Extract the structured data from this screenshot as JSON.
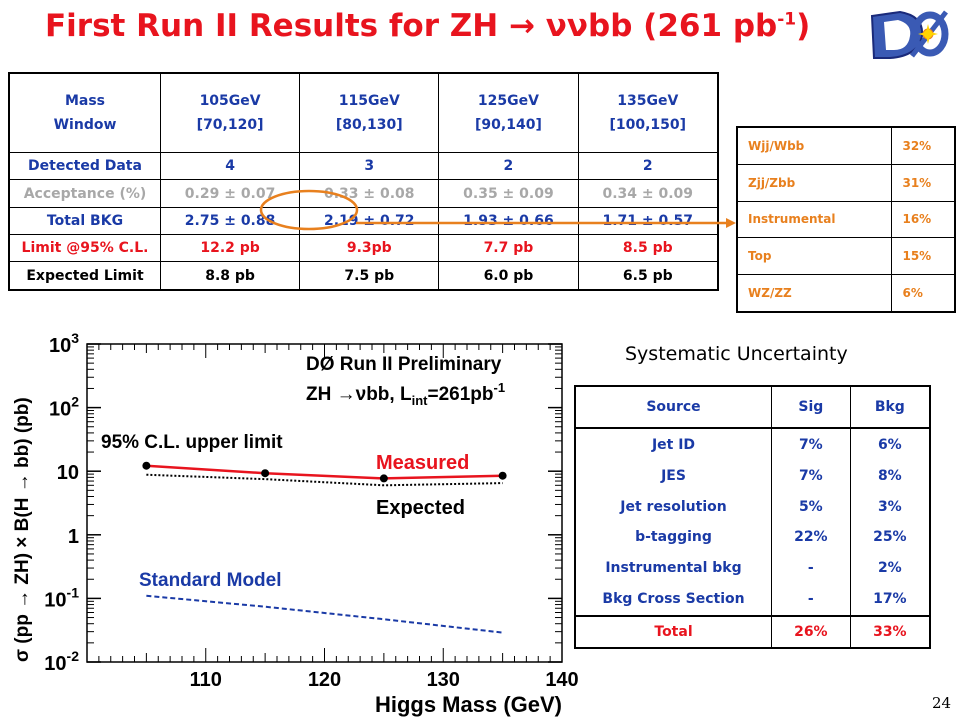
{
  "slide": {
    "title_main": "First Run II Results for ZH → ννbb (261 pb",
    "title_sup": "-1",
    "title_close": ")",
    "page_number": "24"
  },
  "colors": {
    "red": "#e8141e",
    "blue": "#1a3aa6",
    "orange": "#e8801e",
    "gray": "#a8a8a8"
  },
  "results_table": {
    "header": [
      "Mass Window",
      "105GeV [70,120]",
      "115GeV [80,130]",
      "125GeV [90,140]",
      "135GeV [100,150]"
    ],
    "header_lines": [
      [
        "Mass",
        "Window"
      ],
      [
        "105GeV",
        "[70,120]"
      ],
      [
        "115GeV",
        "[80,130]"
      ],
      [
        "125GeV",
        "[90,140]"
      ],
      [
        "135GeV",
        "[100,150]"
      ]
    ],
    "rows": [
      [
        "Detected Data",
        "4",
        "3",
        "2",
        "2"
      ],
      [
        "Acceptance (%)",
        "0.29 ± 0.07",
        "0.33 ± 0.08",
        "0.35 ± 0.09",
        "0.34 ± 0.09"
      ],
      [
        "Total BKG",
        "2.75 ± 0.88",
        "2.19 ± 0.72",
        "1.93 ± 0.66",
        "1.71 ± 0.57"
      ],
      [
        "Limit @95% C.L.",
        "12.2 pb",
        "9.3pb",
        "7.7 pb",
        "8.5 pb"
      ],
      [
        "Expected Limit",
        "8.8 pb",
        "7.5 pb",
        "6.0 pb",
        "6.5 pb"
      ]
    ]
  },
  "bkg_systematics": {
    "rows": [
      [
        "Wjj/Wbb",
        "32%"
      ],
      [
        "Zjj/Zbb",
        "31%"
      ],
      [
        "Instrumental",
        "16%"
      ],
      [
        "Top",
        "15%"
      ],
      [
        "WZ/ZZ",
        "6%"
      ]
    ]
  },
  "systematics": {
    "title": "Systematic Uncertainty",
    "header": [
      "Source",
      "Sig",
      "Bkg"
    ],
    "rows": [
      [
        "Jet ID",
        "7%",
        "6%"
      ],
      [
        "JES",
        "7%",
        "8%"
      ],
      [
        "Jet resolution",
        "5%",
        "3%"
      ],
      [
        "b-tagging",
        "22%",
        "25%"
      ],
      [
        "Instrumental bkg",
        "-",
        "2%"
      ],
      [
        "Bkg Cross Section",
        "-",
        "17%"
      ]
    ],
    "total": [
      "Total",
      "26%",
      "33%"
    ]
  },
  "chart_data": {
    "type": "line",
    "title": "DØ Run II Preliminary",
    "subtitle_parts": {
      "a": "ZH →ν",
      "b": "bb, L",
      "c": "int",
      "d": "=261pb",
      "e": "-1"
    },
    "xlabel": "Higgs Mass (GeV)",
    "ylabel": "σ (pp → ZH) × B(H → bb) (pb)",
    "x_scale": "linear",
    "y_scale": "log",
    "xlim": [
      100,
      140
    ],
    "ylim": [
      0.01,
      1000
    ],
    "x_ticks": [
      "110",
      "120",
      "130",
      "140"
    ],
    "y_ticks": [
      "10",
      "1"
    ],
    "y_ticks_exp": [
      [
        "10",
        "3"
      ],
      [
        "10",
        "2"
      ],
      [
        "10",
        "-1"
      ],
      [
        "10",
        "-2"
      ]
    ],
    "annotation": "95% C.L. upper limit",
    "series": [
      {
        "name": "Measured",
        "color": "#e8141e",
        "style": "solid",
        "markers": true,
        "x": [
          105,
          115,
          125,
          135
        ],
        "y": [
          12.2,
          9.3,
          7.7,
          8.5
        ]
      },
      {
        "name": "Expected",
        "color": "#000000",
        "style": "dotted",
        "markers": false,
        "x": [
          105,
          115,
          125,
          135
        ],
        "y": [
          8.8,
          7.5,
          6.0,
          6.5
        ]
      },
      {
        "name": "Standard Model",
        "color": "#1a3aa6",
        "style": "dashed",
        "markers": false,
        "x": [
          105,
          115,
          125,
          135
        ],
        "y": [
          0.11,
          0.074,
          0.047,
          0.029
        ]
      }
    ]
  }
}
